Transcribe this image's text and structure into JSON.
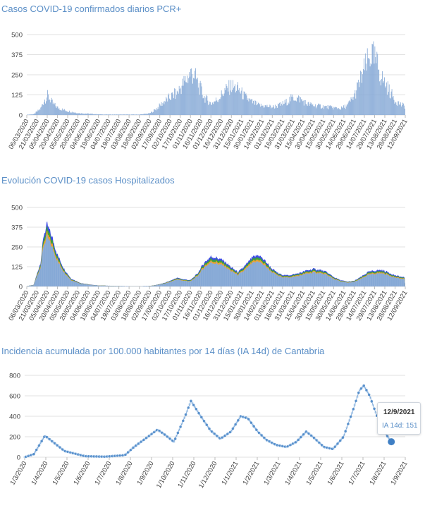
{
  "colors": {
    "title": "#5b8fc7",
    "bar": "#86a9d6",
    "hosp_blue": "#3b49e6",
    "hosp_green": "#3aa33a",
    "hosp_orange": "#f0a030",
    "incidence_line": "#3f7fc4",
    "incidence_light": "#c8ddf2"
  },
  "chart_data": [
    {
      "type": "bar",
      "title": "Casos COVID-19 confirmados diarios PCR+",
      "yticks": [
        0,
        125,
        250,
        375,
        500
      ],
      "ylim": [
        0,
        500
      ],
      "xtick_labels": [
        "06/03/2020",
        "21/03/2020",
        "05/04/2020",
        "20/04/2020",
        "05/05/2020",
        "20/05/2020",
        "04/06/2020",
        "19/06/2020",
        "04/07/2020",
        "19/07/2020",
        "03/08/2020",
        "18/08/2020",
        "02/09/2020",
        "17/09/2020",
        "02/10/2020",
        "17/10/2020",
        "01/11/2020",
        "16/11/2020",
        "01/12/2020",
        "16/12/2020",
        "31/12/2020",
        "15/01/2021",
        "30/01/2021",
        "14/02/2021",
        "01/03/2021",
        "16/03/2021",
        "31/03/2021",
        "15/04/2021",
        "30/04/2021",
        "15/05/2021",
        "30/05/2021",
        "14/06/2021",
        "29/06/2021",
        "14/07/2021",
        "29/07/2021",
        "13/08/2021",
        "28/08/2021",
        "12/09/2021"
      ],
      "series": [
        {
          "envelope_x": [
            0,
            10,
            20,
            25,
            30,
            38,
            45,
            55,
            65,
            75,
            90,
            105,
            120,
            135,
            150,
            165,
            180,
            190,
            200,
            210,
            220,
            235,
            240,
            245,
            250,
            260,
            270,
            280,
            290,
            300,
            310,
            320,
            330,
            340,
            350,
            360,
            370,
            380,
            390,
            400,
            410,
            420,
            430,
            440,
            450,
            460,
            470,
            480,
            490,
            495,
            500,
            505,
            510,
            515,
            520,
            530,
            540,
            550,
            555
          ],
          "envelope_y": [
            2,
            5,
            40,
            90,
            120,
            70,
            45,
            30,
            20,
            12,
            8,
            4,
            3,
            3,
            3,
            3,
            10,
            40,
            80,
            110,
            140,
            230,
            260,
            250,
            200,
            110,
            70,
            100,
            150,
            180,
            160,
            110,
            80,
            60,
            55,
            50,
            60,
            80,
            110,
            100,
            70,
            60,
            55,
            50,
            45,
            40,
            60,
            120,
            230,
            290,
            330,
            380,
            340,
            300,
            230,
            160,
            90,
            60,
            55
          ]
        }
      ]
    },
    {
      "type": "area",
      "title": "Evolución COVID-19 casos  Hospitalizados",
      "yticks": [
        0,
        125,
        250,
        375,
        500
      ],
      "ylim": [
        0,
        500
      ],
      "xtick_labels": [
        "06/03/2020",
        "21/03/2020",
        "05/04/2020",
        "20/04/2020",
        "05/05/2020",
        "20/05/2020",
        "04/06/2020",
        "19/06/2020",
        "04/07/2020",
        "19/07/2020",
        "03/08/2020",
        "18/08/2020",
        "02/09/2020",
        "17/09/2020",
        "02/10/2020",
        "17/10/2020",
        "01/11/2020",
        "16/11/2020",
        "01/12/2020",
        "16/12/2020",
        "31/12/2020",
        "15/01/2021",
        "30/01/2021",
        "14/02/2021",
        "01/03/2021",
        "16/03/2021",
        "31/03/2021",
        "15/04/2021",
        "30/04/2021",
        "15/05/2021",
        "30/05/2021",
        "14/06/2021",
        "29/06/2021",
        "14/07/2021",
        "29/07/2021",
        "13/08/2021",
        "28/08/2021",
        "12/09/2021"
      ],
      "series": [
        {
          "envelope_x": [
            0,
            10,
            20,
            25,
            30,
            38,
            45,
            55,
            65,
            80,
            100,
            130,
            160,
            180,
            190,
            200,
            210,
            220,
            230,
            240,
            250,
            260,
            270,
            280,
            290,
            300,
            310,
            320,
            330,
            340,
            350,
            360,
            370,
            380,
            390,
            400,
            410,
            420,
            430,
            440,
            450,
            460,
            470,
            480,
            490,
            500,
            510,
            520,
            530,
            540,
            555
          ],
          "envelope_y": [
            2,
            10,
            150,
            330,
            390,
            300,
            200,
            110,
            50,
            20,
            8,
            3,
            2,
            3,
            10,
            20,
            35,
            55,
            45,
            40,
            80,
            150,
            190,
            180,
            160,
            120,
            90,
            130,
            180,
            200,
            160,
            110,
            80,
            70,
            75,
            85,
            100,
            110,
            105,
            90,
            60,
            40,
            30,
            35,
            60,
            90,
            100,
            105,
            90,
            70,
            55
          ]
        }
      ]
    },
    {
      "type": "line",
      "title": "Incidencia acumulada por 100.000 habitantes por 14 días (IA 14d) de Cantabria",
      "yticks": [
        0,
        200,
        400,
        600,
        800
      ],
      "ylim": [
        0,
        800
      ],
      "xtick_labels": [
        "1/3/2020",
        "1/4/2020",
        "1/5/2020",
        "1/6/2020",
        "1/7/2020",
        "1/8/2020",
        "1/9/2020",
        "1/10/2020",
        "1/11/2020",
        "1/12/2020",
        "1/1/2021",
        "1/2/2021",
        "1/3/2021",
        "1/4/2021",
        "1/5/2021",
        "1/6/2021",
        "1/7/2021",
        "1/8/2021",
        "1/9/2021"
      ],
      "series": [
        {
          "name": "IA 14d",
          "x": [
            "1/3/2020",
            "15/3/2020",
            "1/4/2020",
            "15/4/2020",
            "1/5/2020",
            "1/6/2020",
            "1/7/2020",
            "1/8/2020",
            "15/8/2020",
            "1/9/2020",
            "20/9/2020",
            "1/10/2020",
            "15/10/2020",
            "1/11/2020",
            "10/11/2020",
            "25/11/2020",
            "10/12/2020",
            "25/12/2020",
            "10/1/2021",
            "25/1/2021",
            "5/2/2021",
            "20/2/2021",
            "5/3/2021",
            "20/3/2021",
            "5/4/2021",
            "20/4/2021",
            "5/5/2021",
            "15/5/2021",
            "1/6/2021",
            "15/6/2021",
            "1/7/2021",
            "15/7/2021",
            "25/7/2021",
            "1/8/2021",
            "10/8/2021",
            "20/8/2021",
            "1/9/2021",
            "12/9/2021"
          ],
          "values": [
            0,
            30,
            210,
            140,
            60,
            10,
            5,
            20,
            100,
            180,
            270,
            220,
            150,
            400,
            550,
            400,
            260,
            180,
            250,
            400,
            380,
            250,
            170,
            120,
            100,
            150,
            250,
            200,
            100,
            80,
            200,
            450,
            650,
            700,
            600,
            420,
            250,
            151
          ]
        }
      ]
    }
  ],
  "tooltip": {
    "date": "12/9/2021",
    "label": "IA 14d: 151"
  }
}
